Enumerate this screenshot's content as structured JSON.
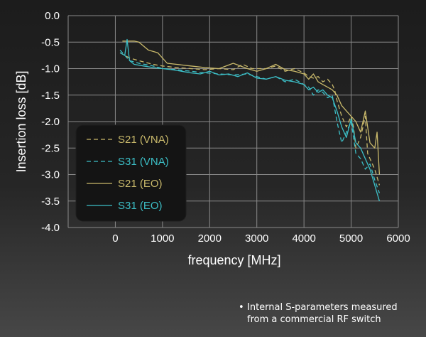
{
  "chart_data": {
    "type": "line",
    "title": "",
    "xlabel": "frequency [MHz]",
    "ylabel": "Insertion loss [dB]",
    "xlim": [
      -1000,
      6000
    ],
    "ylim": [
      -4.0,
      0.0
    ],
    "xticks": [
      0,
      1000,
      2000,
      3000,
      4000,
      5000,
      6000
    ],
    "yticks": [
      0.0,
      -0.5,
      -1.0,
      -1.5,
      -2.0,
      -2.5,
      -3.0,
      -3.5,
      -4.0
    ],
    "xtick_labels": [
      "0",
      "1000",
      "2000",
      "3000",
      "4000",
      "5000",
      "6000"
    ],
    "ytick_labels": [
      "0.0",
      "-0.5",
      "-1.0",
      "-1.5",
      "-2.0",
      "-2.5",
      "-3.0",
      "-3.5",
      "-4.0"
    ],
    "grid": true,
    "legend_position": "left",
    "series": [
      {
        "name": "S21 (VNA)",
        "color": "#c9b96b",
        "dash": "dashed",
        "x": [
          100,
          300,
          500,
          800,
          1000,
          1300,
          1600,
          1900,
          2200,
          2500,
          2700,
          2900,
          3200,
          3400,
          3600,
          3800,
          4000,
          4100,
          4200,
          4300,
          4400,
          4500,
          4600,
          4650,
          4700,
          4800,
          4900,
          5000,
          5050,
          5100,
          5200,
          5300,
          5350,
          5400,
          5500,
          5600
        ],
        "y": [
          -0.7,
          -0.8,
          -0.85,
          -0.92,
          -0.95,
          -0.98,
          -1.0,
          -1.02,
          -1.0,
          -1.02,
          -0.92,
          -1.0,
          -1.0,
          -0.95,
          -1.05,
          -1.0,
          -1.08,
          -1.15,
          -1.18,
          -1.15,
          -1.25,
          -1.2,
          -1.3,
          -1.4,
          -1.6,
          -1.9,
          -2.1,
          -1.9,
          -2.1,
          -2.5,
          -2.3,
          -1.9,
          -2.6,
          -2.7,
          -2.9,
          -3.2
        ]
      },
      {
        "name": "S31 (VNA)",
        "color": "#3cbfc7",
        "dash": "dashed",
        "x": [
          100,
          300,
          500,
          800,
          1000,
          1300,
          1600,
          1900,
          2200,
          2500,
          2800,
          3000,
          3200,
          3400,
          3600,
          3800,
          4000,
          4100,
          4200,
          4300,
          4400,
          4500,
          4600,
          4700,
          4800,
          4900,
          5000,
          5100,
          5200,
          5300,
          5400,
          5500,
          5600
        ],
        "y": [
          -0.65,
          -0.85,
          -0.9,
          -0.95,
          -1.0,
          -1.02,
          -1.05,
          -1.08,
          -1.1,
          -1.12,
          -1.1,
          -1.15,
          -1.2,
          -1.15,
          -1.25,
          -1.2,
          -1.3,
          -1.35,
          -1.5,
          -1.4,
          -1.45,
          -1.55,
          -1.5,
          -2.0,
          -2.4,
          -2.2,
          -2.0,
          -2.6,
          -2.7,
          -2.9,
          -2.8,
          -3.1,
          -3.35
        ]
      },
      {
        "name": "S21 (EO)",
        "color": "#c9b96b",
        "dash": "solid",
        "x": [
          150,
          200,
          400,
          500,
          700,
          900,
          1100,
          1300,
          1600,
          1900,
          2200,
          2500,
          2800,
          3000,
          3200,
          3400,
          3600,
          3800,
          4000,
          4100,
          4200,
          4300,
          4400,
          4500,
          4600,
          4700,
          4800,
          4900,
          5000,
          5100,
          5200,
          5300,
          5400,
          5500,
          5550,
          5600
        ],
        "y": [
          -0.48,
          -0.48,
          -0.48,
          -0.5,
          -0.65,
          -0.7,
          -0.9,
          -0.92,
          -0.95,
          -0.98,
          -1.0,
          -0.9,
          -1.0,
          -1.05,
          -1.0,
          -0.92,
          -1.02,
          -1.05,
          -1.1,
          -1.2,
          -1.1,
          -1.25,
          -1.3,
          -1.35,
          -1.4,
          -1.5,
          -1.7,
          -1.8,
          -1.9,
          -2.0,
          -2.2,
          -1.8,
          -2.4,
          -2.5,
          -2.2,
          -3.0
        ]
      },
      {
        "name": "S31 (EO)",
        "color": "#3cbfc7",
        "dash": "solid",
        "x": [
          100,
          200,
          250,
          300,
          400,
          600,
          800,
          1000,
          1200,
          1400,
          1600,
          1800,
          2000,
          2200,
          2400,
          2600,
          2800,
          3000,
          3200,
          3400,
          3600,
          3800,
          4000,
          4100,
          4200,
          4300,
          4400,
          4500,
          4600,
          4700,
          4800,
          4900,
          5000,
          5100,
          5200,
          5300,
          5400,
          5500,
          5600
        ],
        "y": [
          -0.7,
          -0.75,
          -0.45,
          -0.85,
          -0.92,
          -0.95,
          -0.98,
          -1.0,
          -1.02,
          -1.05,
          -1.08,
          -1.1,
          -1.05,
          -1.12,
          -1.1,
          -1.15,
          -1.08,
          -1.18,
          -1.2,
          -1.15,
          -1.22,
          -1.25,
          -1.3,
          -1.4,
          -1.35,
          -1.45,
          -1.4,
          -1.5,
          -1.55,
          -1.8,
          -2.1,
          -2.3,
          -1.95,
          -2.4,
          -2.5,
          -2.7,
          -2.9,
          -3.2,
          -3.5
        ]
      }
    ]
  },
  "footnote": {
    "bullet": "•",
    "line1": "Internal S-parameters measured",
    "line2": "from a commercial RF switch"
  }
}
